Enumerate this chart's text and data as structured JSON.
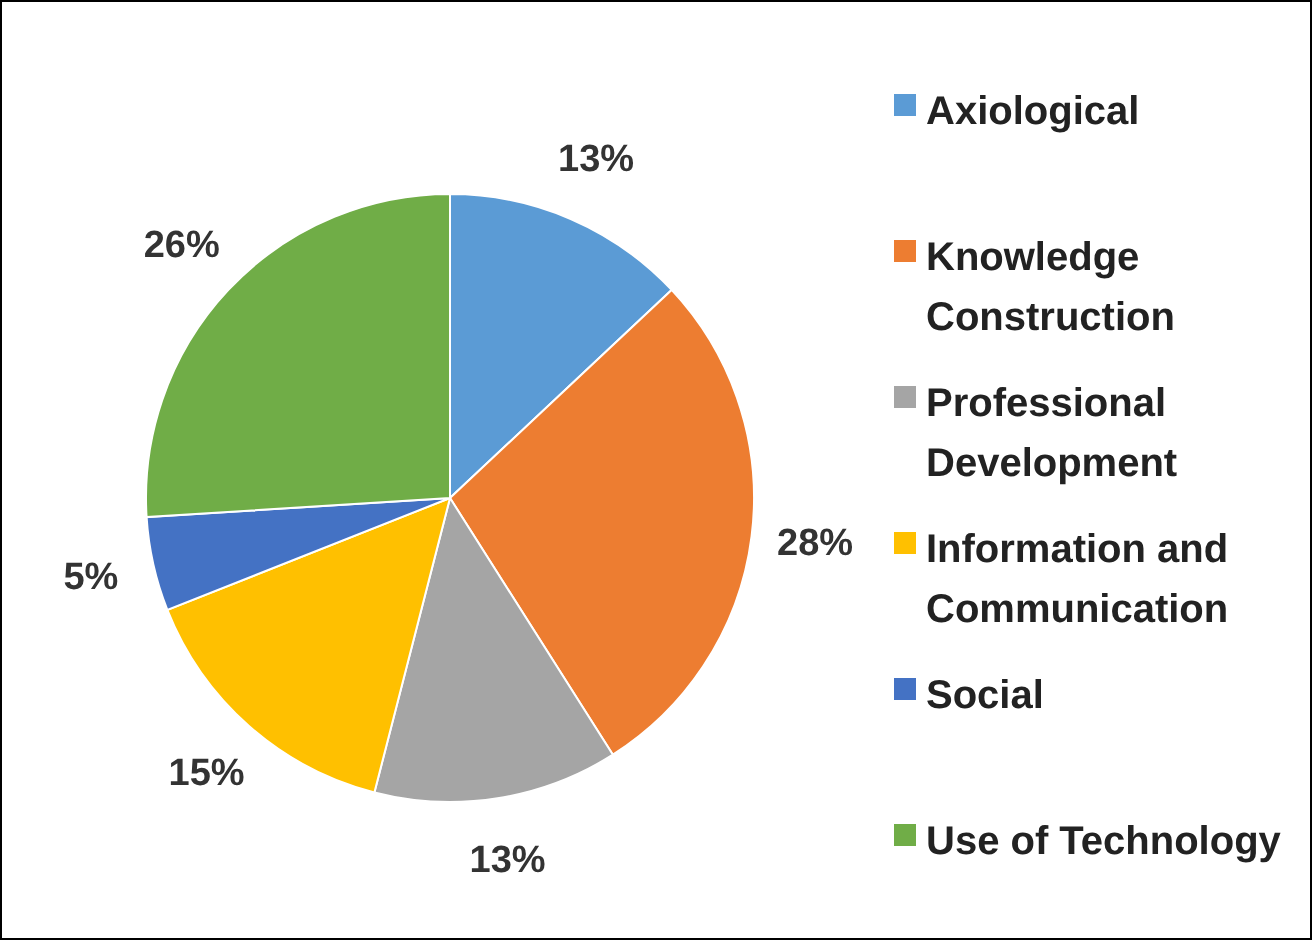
{
  "chart_data": {
    "type": "pie",
    "categories": [
      "Axiological",
      "Knowledge Construction",
      "Professional Development",
      "Information and Communication",
      "Social",
      "Use of Technology"
    ],
    "values": [
      13,
      28,
      13,
      15,
      5,
      26
    ],
    "colors": [
      "#5b9bd5",
      "#ed7d31",
      "#a5a5a5",
      "#ffc000",
      "#4472c4",
      "#70ad47"
    ],
    "value_labels": [
      "13%",
      "28%",
      "13%",
      "15%",
      "5%",
      "26%"
    ],
    "legend": "right"
  }
}
